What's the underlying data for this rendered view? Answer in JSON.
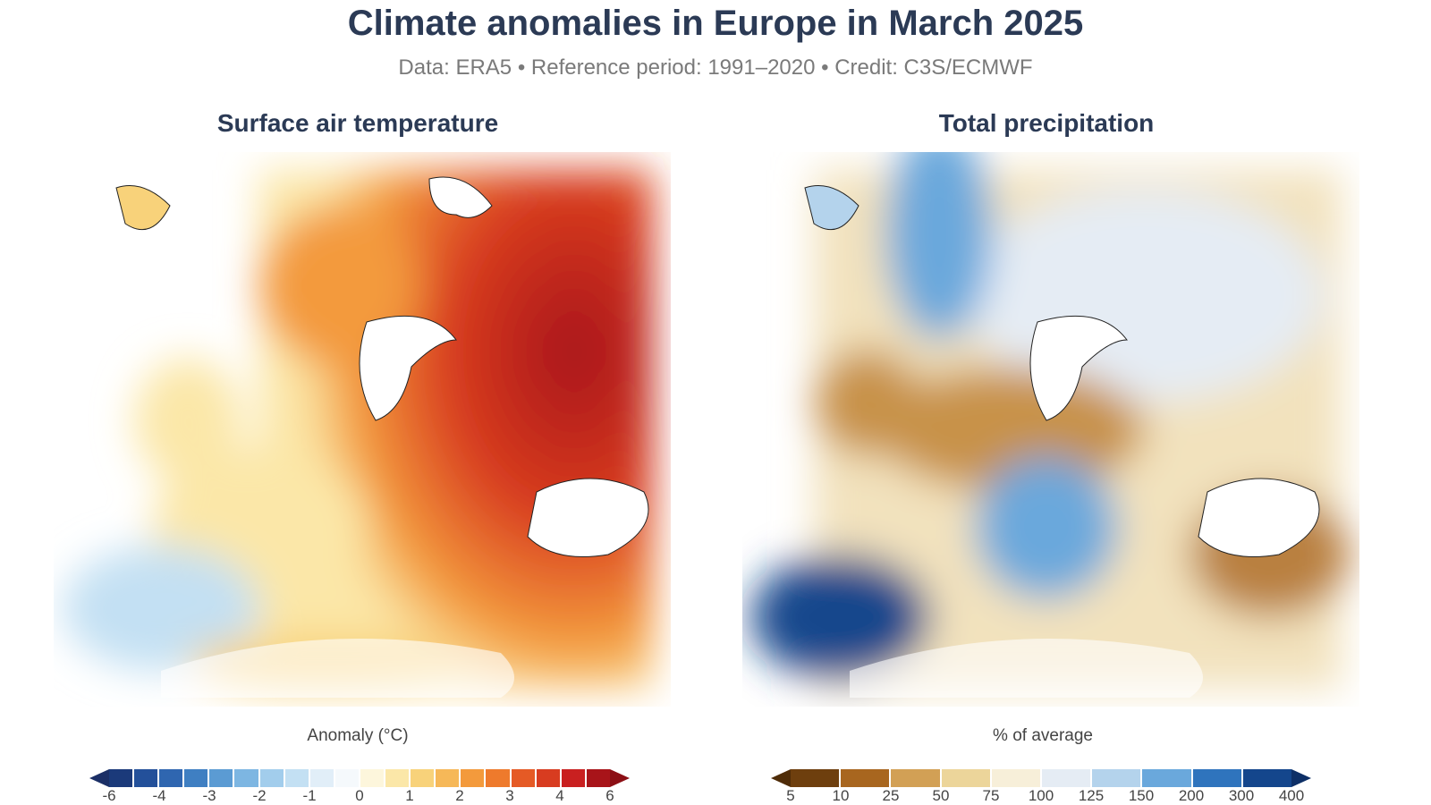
{
  "title": "Climate anomalies in Europe in March 2025",
  "subtitle": "Data: ERA5 • Reference period: 1991–2020 • Credit: C3S/ECMWF",
  "panels": [
    {
      "title": "Surface air temperature",
      "legend_label": "Anomaly (°C)",
      "ticks": [
        "-6",
        "-4",
        "-3",
        "-2",
        "-1",
        "0",
        "1",
        "2",
        "3",
        "4",
        "6"
      ],
      "colors": [
        "#1b3a7a",
        "#23509a",
        "#2f66b0",
        "#3f7fc2",
        "#5b9bd3",
        "#7db6e2",
        "#a2cdec",
        "#c3e0f3",
        "#e1eef8",
        "#f5f9fc",
        "#fdf6dc",
        "#fbe7a8",
        "#f8d27a",
        "#f6b858",
        "#f39a3c",
        "#ee7a2c",
        "#e55a25",
        "#d83c20",
        "#c92020",
        "#a81419"
      ],
      "arrow_low": "#1b2f66",
      "arrow_high": "#8c0f15"
    },
    {
      "title": "Total precipitation",
      "legend_label": "% of average",
      "ticks": [
        "5",
        "10",
        "25",
        "50",
        "75",
        "100",
        "125",
        "150",
        "200",
        "300",
        "400"
      ],
      "colors": [
        "#6e3f0e",
        "#a8661f",
        "#d2a055",
        "#ecd59a",
        "#f7efd9",
        "#e5ecf4",
        "#b4d3ec",
        "#6aa8dc",
        "#2f74bd",
        "#14468c"
      ],
      "arrow_low": "#4f2c08",
      "arrow_high": "#0d2f66"
    }
  ]
}
